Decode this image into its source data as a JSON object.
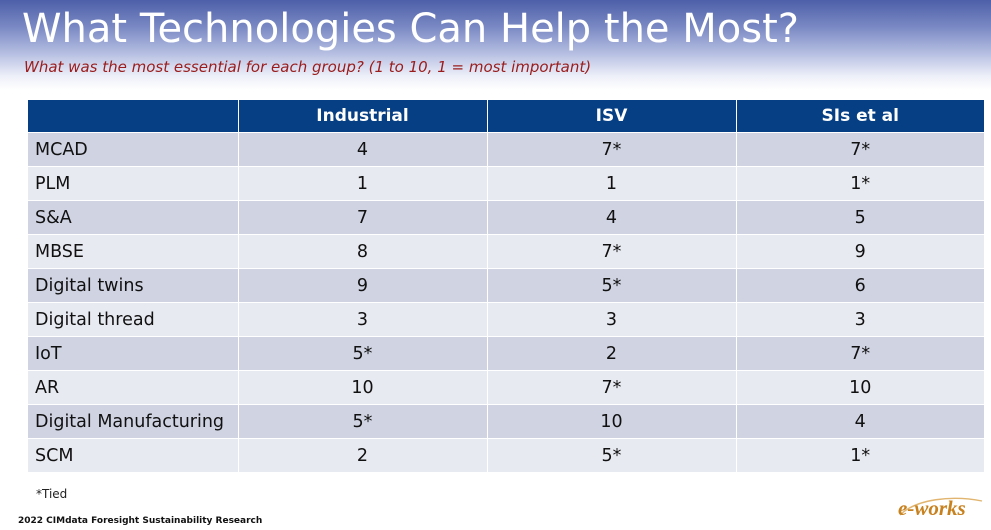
{
  "slide": {
    "title": "What Technologies Can Help the Most?",
    "subtitle": "What was the most essential for each group? (1 to 10, 1 = most important)",
    "footnote": "*Tied",
    "source": "2022 CIMdata Foresight Sustainability Research",
    "logo_text": "e-works"
  },
  "table": {
    "headers": [
      "",
      "Industrial",
      "ISV",
      "SIs et al"
    ],
    "rows": [
      {
        "label": "MCAD",
        "industrial": "4",
        "isv": "7*",
        "sis": "7*"
      },
      {
        "label": "PLM",
        "industrial": "1",
        "isv": "1",
        "sis": "1*"
      },
      {
        "label": "S&A",
        "industrial": "7",
        "isv": "4",
        "sis": "5"
      },
      {
        "label": "MBSE",
        "industrial": "8",
        "isv": "7*",
        "sis": "9"
      },
      {
        "label": "Digital twins",
        "industrial": "9",
        "isv": "5*",
        "sis": "6"
      },
      {
        "label": "Digital thread",
        "industrial": "3",
        "isv": "3",
        "sis": "3"
      },
      {
        "label": "IoT",
        "industrial": "5*",
        "isv": "2",
        "sis": "7*"
      },
      {
        "label": "AR",
        "industrial": "10",
        "isv": "7*",
        "sis": "10"
      },
      {
        "label": "Digital Manufacturing",
        "industrial": "5*",
        "isv": "10",
        "sis": "4"
      },
      {
        "label": "SCM",
        "industrial": "2",
        "isv": "5*",
        "sis": "1*"
      }
    ]
  },
  "colors": {
    "header_fill": "#063f83",
    "row_odd": "#cfd3e2",
    "row_even": "#e8eaf1",
    "subtitle": "#9a1c1c",
    "logo": "#c8811f"
  }
}
